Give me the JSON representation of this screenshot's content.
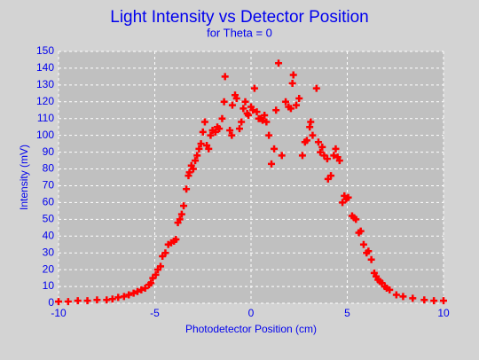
{
  "chart_data": {
    "type": "scatter",
    "title": "Light Intensity vs Detector Position",
    "subtitle": "for Theta = 0",
    "x_label": "Photodetector Position (cm)",
    "y_label": "Intensity (mV)",
    "xlim": [
      -10,
      10
    ],
    "ylim": [
      0,
      150
    ],
    "xticks": [
      -10,
      -5,
      0,
      5,
      10
    ],
    "yticks": [
      0,
      10,
      20,
      30,
      40,
      50,
      60,
      70,
      80,
      90,
      100,
      110,
      120,
      130,
      140,
      150
    ],
    "grid": true,
    "series": [
      {
        "color": "#ff0000",
        "x": [
          -10,
          -9.5,
          -9,
          -8.5,
          -8,
          -7.5,
          -7.2,
          -6.9,
          -6.6,
          -6.35,
          -6.1,
          -5.9,
          -5.7,
          -5.5,
          -5.3,
          -5.2,
          -5.1,
          -4.95,
          -4.84,
          -4.7,
          -4.6,
          -4.45,
          -4.3,
          -4.15,
          -4.0,
          -3.9,
          -3.8,
          -3.7,
          -3.6,
          -3.5,
          -3.36,
          -3.25,
          -3.2,
          -3.1,
          -3.0,
          -2.9,
          -2.8,
          -2.7,
          -2.6,
          -2.5,
          -2.4,
          -2.3,
          -2.2,
          -2.1,
          -2.0,
          -1.85,
          -1.75,
          -1.65,
          -1.5,
          -1.4,
          -1.35,
          -1.1,
          -1.0,
          -0.97,
          -0.83,
          -0.75,
          -0.6,
          -0.5,
          -0.4,
          -0.3,
          -0.2,
          -0.14,
          0,
          0.1,
          0.18,
          0.3,
          0.4,
          0.5,
          0.6,
          0.7,
          0.8,
          0.93,
          1.06,
          1.2,
          1.3,
          1.43,
          1.6,
          1.8,
          1.95,
          2.07,
          2.15,
          2.2,
          2.35,
          2.5,
          2.67,
          2.8,
          2.9,
          3.05,
          3.1,
          3.2,
          3.4,
          3.5,
          3.6,
          3.7,
          3.8,
          3.96,
          4.0,
          4.15,
          4.3,
          4.4,
          4.5,
          4.6,
          4.75,
          4.85,
          4.95,
          5.05,
          5.25,
          5.35,
          5.45,
          5.6,
          5.7,
          5.85,
          6.0,
          6.1,
          6.25,
          6.4,
          6.5,
          6.6,
          6.7,
          6.8,
          6.95,
          7.05,
          7.2,
          7.55,
          7.9,
          8.4,
          9.0,
          9.5,
          10
        ],
        "values": [
          1,
          1,
          1.5,
          1.5,
          2,
          2,
          2.5,
          3.5,
          4,
          5,
          6,
          7,
          8,
          9,
          11,
          12,
          15,
          17,
          20,
          22,
          28,
          30,
          35,
          36,
          37,
          38,
          48,
          50,
          53,
          58,
          68,
          76,
          78,
          82,
          80,
          85,
          88,
          92,
          95,
          102,
          108,
          94,
          92,
          100,
          103,
          102,
          105,
          104,
          110,
          120,
          135,
          103,
          100,
          118,
          124,
          122,
          104,
          108,
          116,
          120,
          113,
          112,
          117,
          115,
          128,
          114,
          110,
          110,
          109,
          112,
          108,
          100,
          83,
          92,
          115,
          143,
          88,
          120,
          117,
          116,
          131,
          136,
          118,
          122,
          88,
          96,
          97,
          105,
          108,
          100,
          128,
          96,
          90,
          93,
          88,
          86,
          74,
          76,
          88,
          92,
          87,
          85,
          60,
          64,
          62,
          63,
          52,
          51,
          50,
          42,
          43,
          35,
          30,
          31,
          26,
          18,
          16,
          14,
          13,
          12,
          10,
          9,
          8,
          5,
          4,
          3,
          2,
          1.5,
          1.5
        ]
      }
    ]
  }
}
